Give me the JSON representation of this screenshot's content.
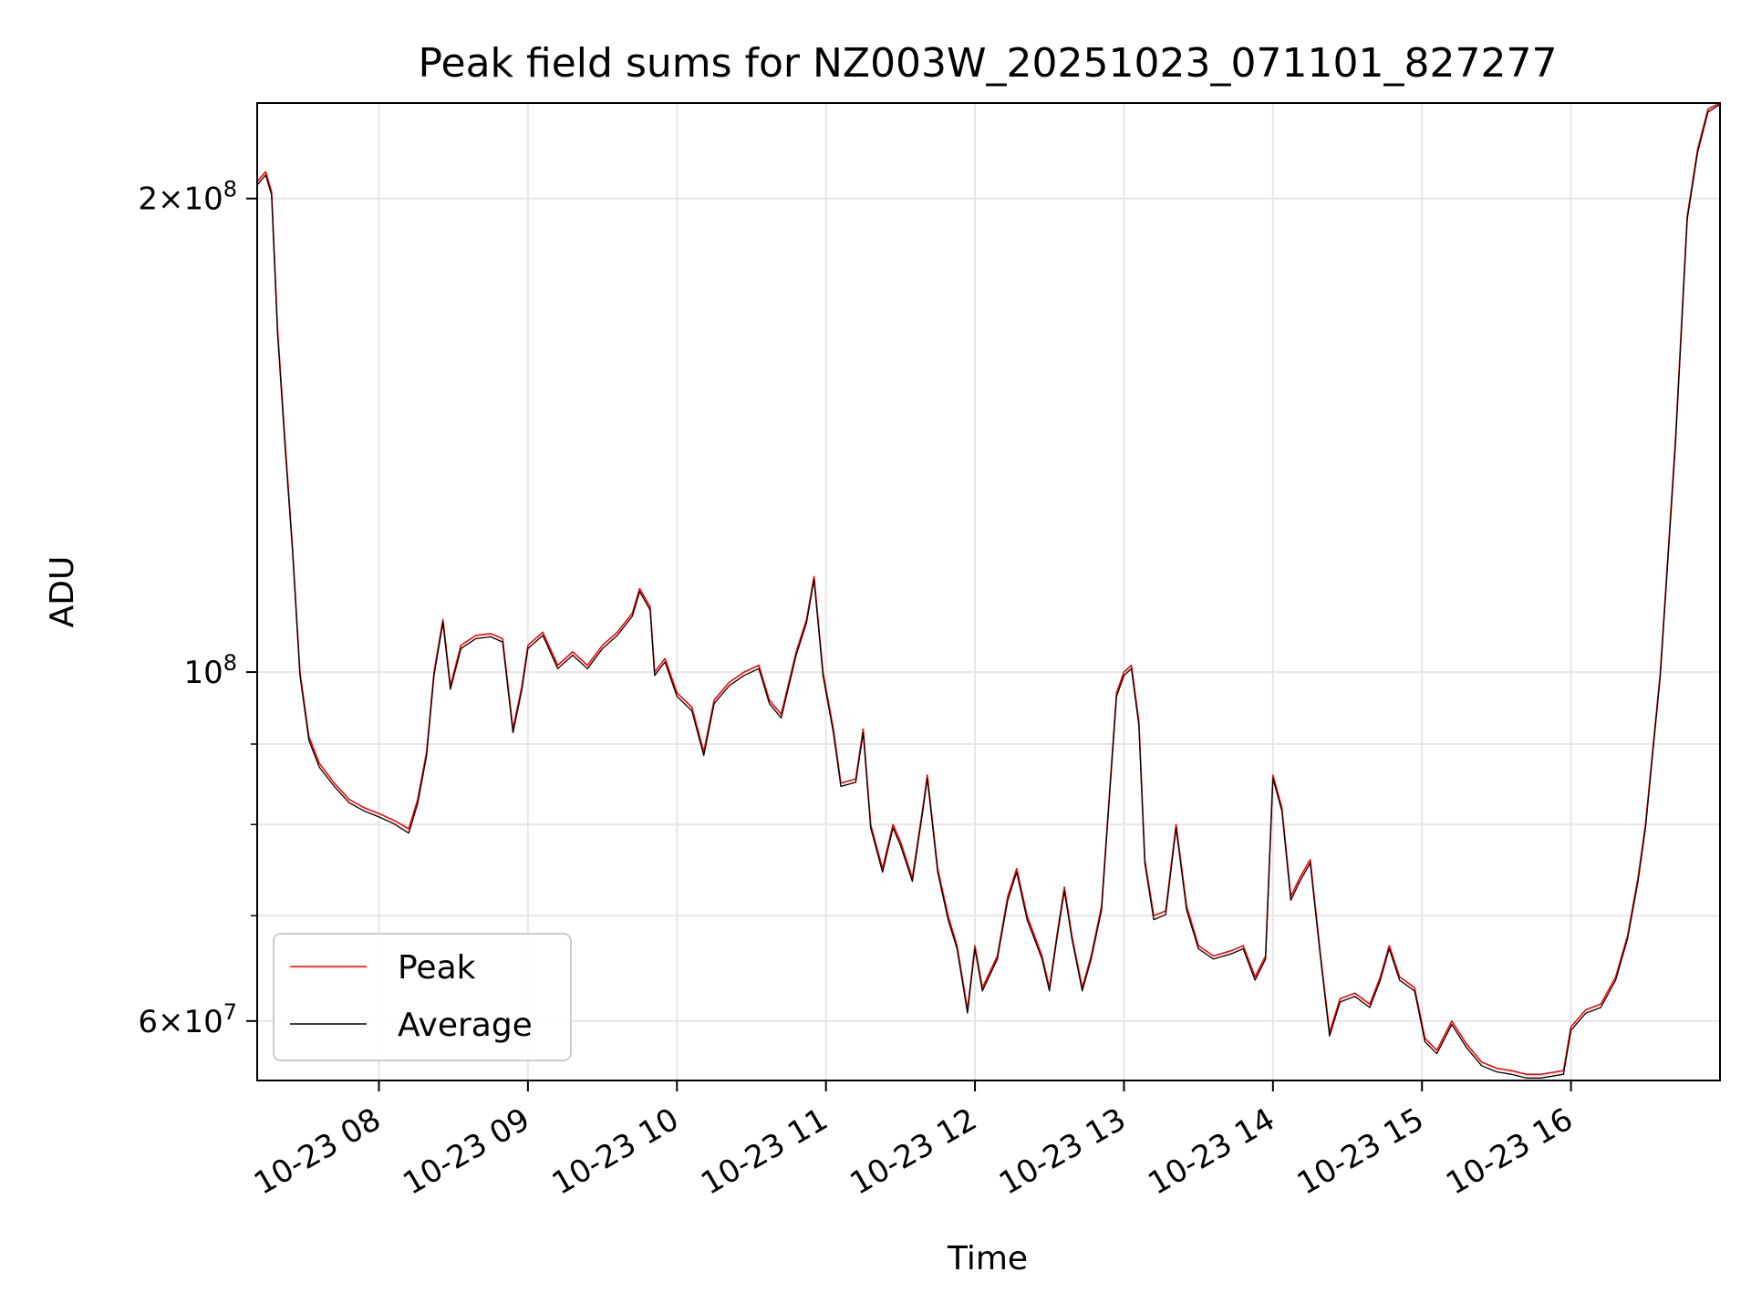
{
  "chart_data": {
    "type": "line",
    "title": "Peak field sums for NZ003W_20251023_071101_827277",
    "xlabel": "Time",
    "ylabel": "ADU",
    "yscale": "log",
    "ylim": [
      55000000,
      230000000
    ],
    "xlim_hours": [
      7.183,
      17.0
    ],
    "grid": true,
    "legend_position": "lower-left",
    "x_ticks": [
      {
        "hour": 8,
        "label": "10-23 08"
      },
      {
        "hour": 9,
        "label": "10-23 09"
      },
      {
        "hour": 10,
        "label": "10-23 10"
      },
      {
        "hour": 11,
        "label": "10-23 11"
      },
      {
        "hour": 12,
        "label": "10-23 12"
      },
      {
        "hour": 13,
        "label": "10-23 13"
      },
      {
        "hour": 14,
        "label": "10-23 14"
      },
      {
        "hour": 15,
        "label": "10-23 15"
      },
      {
        "hour": 16,
        "label": "10-23 16"
      }
    ],
    "y_major_ticks": [
      {
        "value": 60000000,
        "mantissa": "6",
        "exponent": "7"
      },
      {
        "value": 100000000,
        "mantissa": "",
        "exponent": "8"
      },
      {
        "value": 200000000,
        "mantissa": "2",
        "exponent": "8"
      }
    ],
    "y_minor_ticks": [
      70000000,
      80000000,
      90000000
    ],
    "series": [
      {
        "name": "Peak",
        "color": "#ff0000",
        "points": [
          [
            7.183,
            205000000
          ],
          [
            7.24,
            208000000
          ],
          [
            7.28,
            202000000
          ],
          [
            7.32,
            165000000
          ],
          [
            7.37,
            140000000
          ],
          [
            7.42,
            120000000
          ],
          [
            7.47,
            100000000
          ],
          [
            7.53,
            91000000
          ],
          [
            7.6,
            87500000
          ],
          [
            7.7,
            85000000
          ],
          [
            7.8,
            83000000
          ],
          [
            7.9,
            82000000
          ],
          [
            8.0,
            81300000
          ],
          [
            8.1,
            80500000
          ],
          [
            8.2,
            79500000
          ],
          [
            8.26,
            83000000
          ],
          [
            8.32,
            89000000
          ],
          [
            8.37,
            100000000
          ],
          [
            8.43,
            108000000
          ],
          [
            8.48,
            98000000
          ],
          [
            8.55,
            104000000
          ],
          [
            8.65,
            105500000
          ],
          [
            8.75,
            105800000
          ],
          [
            8.83,
            105000000
          ],
          [
            8.9,
            92000000
          ],
          [
            8.96,
            98000000
          ],
          [
            9.0,
            104000000
          ],
          [
            9.1,
            106000000
          ],
          [
            9.2,
            101000000
          ],
          [
            9.3,
            103000000
          ],
          [
            9.4,
            101000000
          ],
          [
            9.5,
            104000000
          ],
          [
            9.6,
            106000000
          ],
          [
            9.7,
            109000000
          ],
          [
            9.75,
            113000000
          ],
          [
            9.82,
            110000000
          ],
          [
            9.85,
            100000000
          ],
          [
            9.92,
            102000000
          ],
          [
            10.0,
            97000000
          ],
          [
            10.1,
            95000000
          ],
          [
            10.18,
            89000000
          ],
          [
            10.25,
            96000000
          ],
          [
            10.35,
            98500000
          ],
          [
            10.45,
            100000000
          ],
          [
            10.55,
            101000000
          ],
          [
            10.62,
            96000000
          ],
          [
            10.7,
            94000000
          ],
          [
            10.8,
            103000000
          ],
          [
            10.87,
            108000000
          ],
          [
            10.92,
            115000000
          ],
          [
            10.98,
            100000000
          ],
          [
            11.05,
            92000000
          ],
          [
            11.1,
            85000000
          ],
          [
            11.2,
            85500000
          ],
          [
            11.25,
            92000000
          ],
          [
            11.3,
            80000000
          ],
          [
            11.38,
            75000000
          ],
          [
            11.45,
            80000000
          ],
          [
            11.5,
            78000000
          ],
          [
            11.58,
            74000000
          ],
          [
            11.65,
            82000000
          ],
          [
            11.68,
            86000000
          ],
          [
            11.75,
            75000000
          ],
          [
            11.82,
            70000000
          ],
          [
            11.88,
            67000000
          ],
          [
            11.95,
            61000000
          ],
          [
            12.0,
            67000000
          ],
          [
            12.05,
            63000000
          ],
          [
            12.15,
            66000000
          ],
          [
            12.22,
            72000000
          ],
          [
            12.28,
            75000000
          ],
          [
            12.35,
            70000000
          ],
          [
            12.45,
            66000000
          ],
          [
            12.5,
            63000000
          ],
          [
            12.55,
            68000000
          ],
          [
            12.6,
            73000000
          ],
          [
            12.65,
            68000000
          ],
          [
            12.72,
            63000000
          ],
          [
            12.78,
            66000000
          ],
          [
            12.85,
            71000000
          ],
          [
            12.9,
            83000000
          ],
          [
            12.95,
            97000000
          ],
          [
            13.0,
            100000000
          ],
          [
            13.05,
            101000000
          ],
          [
            13.1,
            93000000
          ],
          [
            13.14,
            76000000
          ],
          [
            13.2,
            70000000
          ],
          [
            13.28,
            70500000
          ],
          [
            13.35,
            80000000
          ],
          [
            13.42,
            71000000
          ],
          [
            13.5,
            67000000
          ],
          [
            13.6,
            66000000
          ],
          [
            13.72,
            66500000
          ],
          [
            13.8,
            67000000
          ],
          [
            13.88,
            64000000
          ],
          [
            13.95,
            66000000
          ],
          [
            14.0,
            86000000
          ],
          [
            14.06,
            82000000
          ],
          [
            14.12,
            72000000
          ],
          [
            14.18,
            74000000
          ],
          [
            14.25,
            76000000
          ],
          [
            14.32,
            66000000
          ],
          [
            14.38,
            59000000
          ],
          [
            14.45,
            62000000
          ],
          [
            14.55,
            62500000
          ],
          [
            14.65,
            61500000
          ],
          [
            14.72,
            64000000
          ],
          [
            14.78,
            67000000
          ],
          [
            14.85,
            64000000
          ],
          [
            14.95,
            63000000
          ],
          [
            15.02,
            58500000
          ],
          [
            15.1,
            57500000
          ],
          [
            15.2,
            60000000
          ],
          [
            15.3,
            58000000
          ],
          [
            15.4,
            56500000
          ],
          [
            15.5,
            56000000
          ],
          [
            15.6,
            55800000
          ],
          [
            15.7,
            55500000
          ],
          [
            15.8,
            55500000
          ],
          [
            15.95,
            55800000
          ],
          [
            16.0,
            59500000
          ],
          [
            16.1,
            61000000
          ],
          [
            16.2,
            61500000
          ],
          [
            16.3,
            64000000
          ],
          [
            16.38,
            68000000
          ],
          [
            16.45,
            74000000
          ],
          [
            16.5,
            80000000
          ],
          [
            16.6,
            100000000
          ],
          [
            16.7,
            140000000
          ],
          [
            16.78,
            195000000
          ],
          [
            16.85,
            215000000
          ],
          [
            16.92,
            228000000
          ],
          [
            17.0,
            230000000
          ]
        ]
      },
      {
        "name": "Average",
        "color": "#000000",
        "points": [
          [
            7.183,
            204000000
          ],
          [
            7.24,
            207000000
          ],
          [
            7.28,
            201000000
          ],
          [
            7.32,
            164000000
          ],
          [
            7.37,
            139000000
          ],
          [
            7.42,
            119500000
          ],
          [
            7.47,
            99500000
          ],
          [
            7.53,
            90500000
          ],
          [
            7.6,
            87000000
          ],
          [
            7.7,
            84600000
          ],
          [
            7.8,
            82600000
          ],
          [
            7.9,
            81600000
          ],
          [
            8.0,
            80900000
          ],
          [
            8.1,
            80100000
          ],
          [
            8.2,
            79000000
          ],
          [
            8.26,
            82500000
          ],
          [
            8.32,
            88500000
          ],
          [
            8.37,
            99500000
          ],
          [
            8.43,
            107500000
          ],
          [
            8.48,
            97500000
          ],
          [
            8.55,
            103500000
          ],
          [
            8.65,
            105000000
          ],
          [
            8.75,
            105300000
          ],
          [
            8.83,
            104500000
          ],
          [
            8.9,
            91500000
          ],
          [
            8.96,
            97500000
          ],
          [
            9.0,
            103500000
          ],
          [
            9.1,
            105500000
          ],
          [
            9.2,
            100500000
          ],
          [
            9.3,
            102500000
          ],
          [
            9.4,
            100500000
          ],
          [
            9.5,
            103500000
          ],
          [
            9.6,
            105500000
          ],
          [
            9.7,
            108500000
          ],
          [
            9.75,
            112500000
          ],
          [
            9.82,
            109500000
          ],
          [
            9.85,
            99500000
          ],
          [
            9.92,
            101500000
          ],
          [
            10.0,
            96500000
          ],
          [
            10.1,
            94500000
          ],
          [
            10.18,
            88500000
          ],
          [
            10.25,
            95500000
          ],
          [
            10.35,
            98000000
          ],
          [
            10.45,
            99500000
          ],
          [
            10.55,
            100500000
          ],
          [
            10.62,
            95500000
          ],
          [
            10.7,
            93500000
          ],
          [
            10.8,
            102500000
          ],
          [
            10.87,
            107500000
          ],
          [
            10.92,
            114500000
          ],
          [
            10.98,
            99500000
          ],
          [
            11.05,
            91500000
          ],
          [
            11.1,
            84600000
          ],
          [
            11.2,
            85100000
          ],
          [
            11.25,
            91500000
          ],
          [
            11.3,
            79600000
          ],
          [
            11.38,
            74600000
          ],
          [
            11.45,
            79600000
          ],
          [
            11.5,
            77600000
          ],
          [
            11.58,
            73600000
          ],
          [
            11.65,
            81600000
          ],
          [
            11.68,
            85600000
          ],
          [
            11.75,
            74600000
          ],
          [
            11.82,
            69600000
          ],
          [
            11.88,
            66700000
          ],
          [
            11.95,
            60700000
          ],
          [
            12.0,
            66700000
          ],
          [
            12.05,
            62700000
          ],
          [
            12.15,
            65700000
          ],
          [
            12.22,
            71600000
          ],
          [
            12.28,
            74600000
          ],
          [
            12.35,
            69600000
          ],
          [
            12.45,
            65700000
          ],
          [
            12.5,
            62700000
          ],
          [
            12.55,
            67700000
          ],
          [
            12.6,
            72600000
          ],
          [
            12.65,
            67700000
          ],
          [
            12.72,
            62700000
          ],
          [
            12.78,
            65700000
          ],
          [
            12.85,
            70600000
          ],
          [
            12.9,
            82600000
          ],
          [
            12.95,
            96500000
          ],
          [
            13.0,
            99500000
          ],
          [
            13.05,
            100500000
          ],
          [
            13.1,
            92500000
          ],
          [
            13.14,
            75600000
          ],
          [
            13.2,
            69600000
          ],
          [
            13.28,
            70100000
          ],
          [
            13.35,
            79600000
          ],
          [
            13.42,
            70600000
          ],
          [
            13.5,
            66700000
          ],
          [
            13.6,
            65700000
          ],
          [
            13.72,
            66200000
          ],
          [
            13.8,
            66700000
          ],
          [
            13.88,
            63700000
          ],
          [
            13.95,
            65700000
          ],
          [
            14.0,
            85600000
          ],
          [
            14.06,
            81600000
          ],
          [
            14.12,
            71600000
          ],
          [
            14.18,
            73600000
          ],
          [
            14.25,
            75600000
          ],
          [
            14.32,
            65700000
          ],
          [
            14.38,
            58700000
          ],
          [
            14.45,
            61700000
          ],
          [
            14.55,
            62200000
          ],
          [
            14.65,
            61200000
          ],
          [
            14.72,
            63700000
          ],
          [
            14.78,
            66700000
          ],
          [
            14.85,
            63700000
          ],
          [
            14.95,
            62700000
          ],
          [
            15.02,
            58200000
          ],
          [
            15.1,
            57200000
          ],
          [
            15.2,
            59700000
          ],
          [
            15.3,
            57700000
          ],
          [
            15.4,
            56200000
          ],
          [
            15.5,
            55700000
          ],
          [
            15.6,
            55500000
          ],
          [
            15.7,
            55200000
          ],
          [
            15.8,
            55200000
          ],
          [
            15.95,
            55500000
          ],
          [
            16.0,
            59200000
          ],
          [
            16.1,
            60700000
          ],
          [
            16.2,
            61200000
          ],
          [
            16.3,
            63700000
          ],
          [
            16.38,
            67700000
          ],
          [
            16.45,
            73600000
          ],
          [
            16.5,
            79600000
          ],
          [
            16.6,
            99500000
          ],
          [
            16.7,
            139000000
          ],
          [
            16.78,
            194000000
          ],
          [
            16.85,
            214000000
          ],
          [
            16.92,
            227000000
          ],
          [
            17.0,
            229500000
          ]
        ]
      }
    ]
  }
}
